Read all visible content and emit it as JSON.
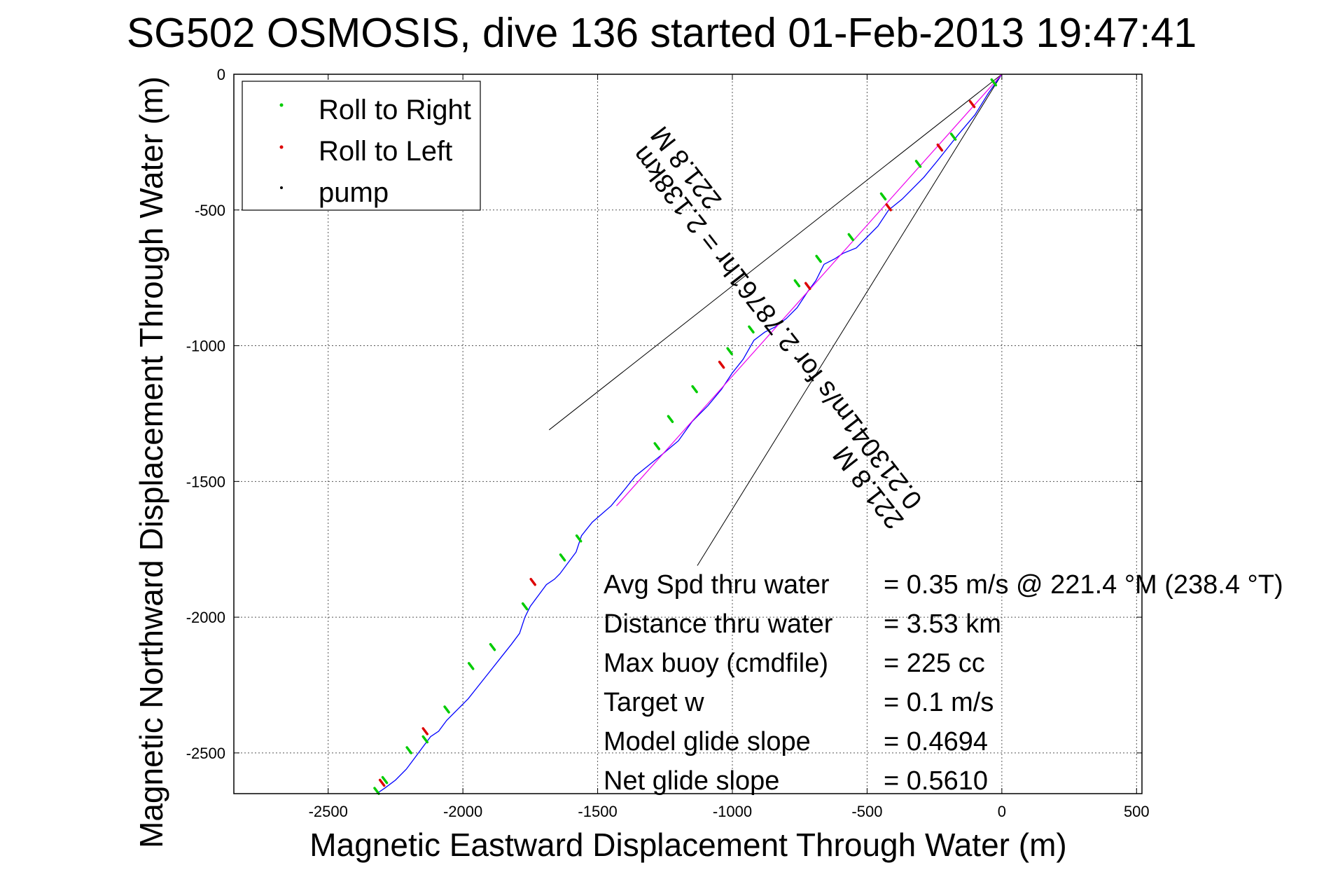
{
  "chart_data": {
    "type": "line",
    "title": "SG502 OSMOSIS, dive 136 started 01-Feb-2013 19:47:41",
    "xlabel": "Magnetic Eastward Displacement Through Water (m)",
    "ylabel": "Magnetic Northward Displacement Through Water (m)",
    "xlim": [
      -2850,
      520
    ],
    "ylim": [
      -2650,
      0
    ],
    "xticks": [
      -2500,
      -2000,
      -1500,
      -1000,
      -500,
      0,
      500
    ],
    "yticks": [
      0,
      -500,
      -1000,
      -1500,
      -2000,
      -2500
    ],
    "grid": true,
    "legend_position": "top-left",
    "legend": [
      {
        "label": "Roll to Right",
        "color": "#00cc00"
      },
      {
        "label": "Roll to Left",
        "color": "#dd0000"
      },
      {
        "label": "pump",
        "color": "#000000"
      }
    ],
    "series": [
      {
        "color": "#0000ff",
        "x": [
          0,
          -50,
          -100,
          -160,
          -200,
          -240,
          -290,
          -330,
          -370,
          -420,
          -460,
          -500,
          -540,
          -590,
          -620,
          -660,
          -690,
          -720,
          -760,
          -800,
          -840,
          -880,
          -920,
          -960,
          -1000,
          -1040,
          -1090,
          -1150,
          -1200,
          -1260,
          -1310,
          -1360,
          -1400,
          -1450,
          -1520,
          -1560,
          -1580,
          -1610,
          -1640,
          -1660,
          -1690,
          -1720,
          -1750,
          -1770,
          -1790,
          -1820,
          -1860,
          -1900,
          -1940,
          -1980,
          -2020,
          -2060,
          -2090,
          -2120,
          -2150,
          -2180,
          -2210,
          -2250,
          -2290,
          -2320
        ],
        "y": [
          0,
          -70,
          -150,
          -220,
          -270,
          -320,
          -380,
          -420,
          -460,
          -500,
          -560,
          -600,
          -640,
          -660,
          -680,
          -700,
          -760,
          -800,
          -860,
          -900,
          -930,
          -950,
          -980,
          -1050,
          -1100,
          -1160,
          -1220,
          -1280,
          -1350,
          -1400,
          -1440,
          -1480,
          -1530,
          -1590,
          -1650,
          -1700,
          -1760,
          -1800,
          -1840,
          -1860,
          -1880,
          -1920,
          -1960,
          -2000,
          -2060,
          -2100,
          -2150,
          -2200,
          -2250,
          -2300,
          -2340,
          -2380,
          -2420,
          -2440,
          -2480,
          -2520,
          -2560,
          -2600,
          -2630,
          -2650
        ]
      },
      {
        "color": "#ee00ee",
        "x": [
          0,
          -1430
        ],
        "y": [
          0,
          -1590
        ]
      }
    ],
    "roll_right_points": {
      "x": [
        -30,
        -180,
        -310,
        -440,
        -560,
        -680,
        -760,
        -930,
        -1010,
        -1140,
        -1230,
        -1280,
        -1570,
        -1630,
        -1770,
        -1890,
        -1970,
        -2060,
        -2140,
        -2200,
        -2290,
        -2320
      ],
      "y": [
        -30,
        -230,
        -330,
        -450,
        -600,
        -680,
        -770,
        -940,
        -1020,
        -1160,
        -1270,
        -1370,
        -1710,
        -1780,
        -1960,
        -2110,
        -2180,
        -2340,
        -2450,
        -2490,
        -2600,
        -2640
      ],
      "color": "#00cc00"
    },
    "roll_left_points": {
      "x": [
        -110,
        -230,
        -420,
        -720,
        -1040,
        -1740,
        -2140,
        -2300
      ],
      "y": [
        -110,
        -270,
        -490,
        -780,
        -1070,
        -1870,
        -2420,
        -2610
      ],
      "color": "#dd0000"
    },
    "cone_lines": [
      {
        "x": [
          0,
          -1680
        ],
        "y": [
          0,
          -1310
        ]
      },
      {
        "x": [
          0,
          -1130
        ],
        "y": [
          0,
          -1810
        ]
      }
    ],
    "rotated_annotation": [
      "221.8 M",
      "0.213041m/s for 2.78761hr = 2.138km",
      "221.8 M"
    ],
    "stats_text": [
      {
        "label": "Avg Spd thru water",
        "value": "=  0.35 m/s @ 221.4 °M (238.4 °T)"
      },
      {
        "label": "Distance thru water",
        "value": "=  3.53 km"
      },
      {
        "label": "Max buoy (cmdfile)",
        "value": "= 225 cc"
      },
      {
        "label": "Target w",
        "value": "= 0.1 m/s"
      },
      {
        "label": "Model glide slope",
        "value": "= 0.4694"
      },
      {
        "label": "Net glide slope",
        "value": "= 0.5610"
      }
    ]
  }
}
